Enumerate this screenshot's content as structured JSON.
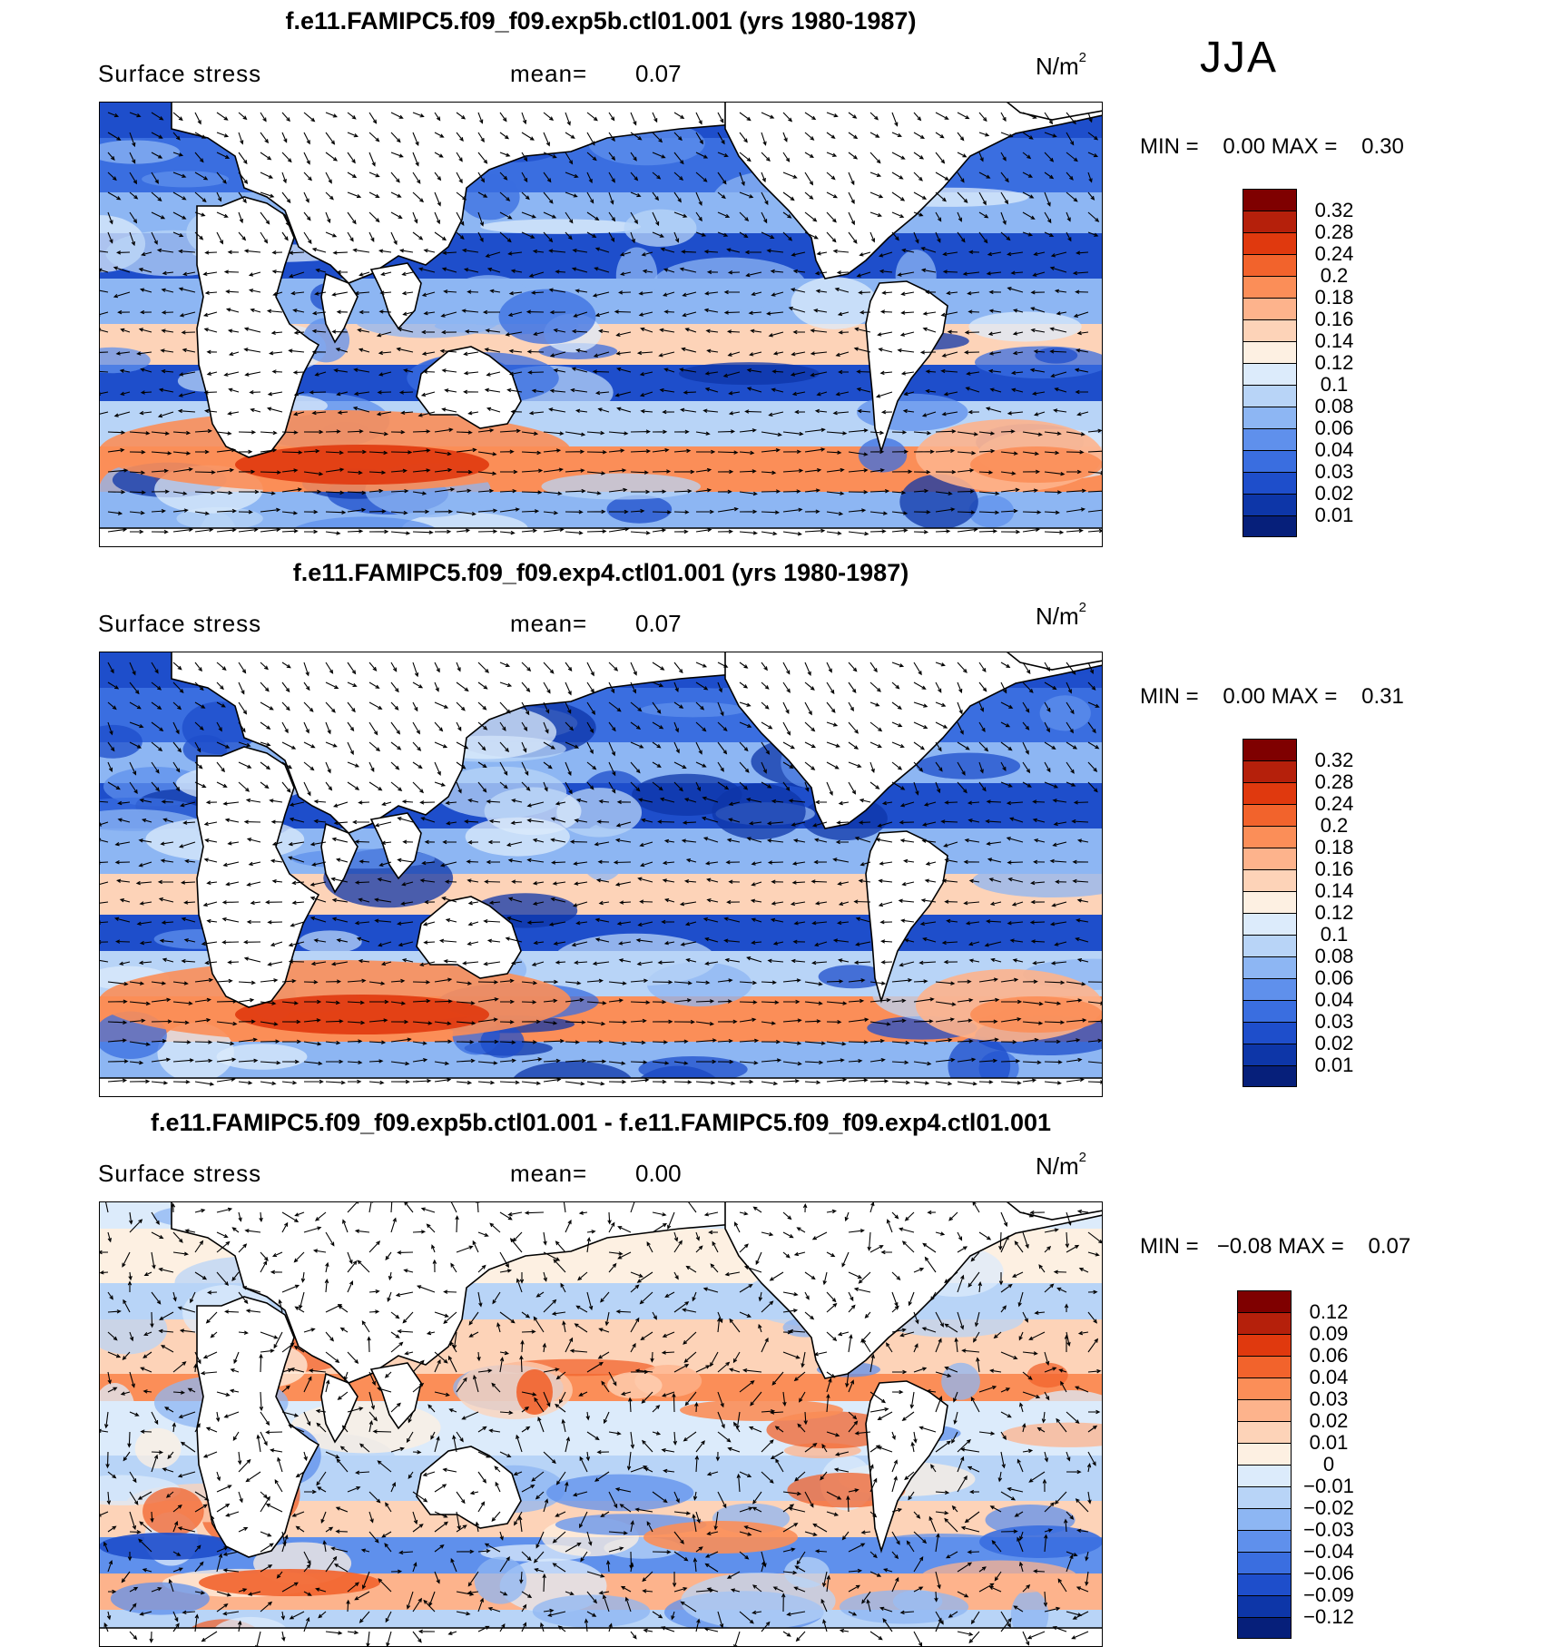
{
  "season": "JJA",
  "panels": [
    {
      "title": "f.e11.FAMIPC5.f09_f09.exp5b.ctl01.001 (yrs 1980-1987)",
      "variable": "Surface stress",
      "mean_label": "mean=",
      "mean_value": "0.07",
      "units_base": "N/m",
      "units_exp": "2",
      "min_label": "MIN =",
      "min_value": "0.00",
      "max_label": "MAX =",
      "max_value": "0.30",
      "colorbar": {
        "labels": [
          "0.32",
          "0.28",
          "0.24",
          "0.2",
          "0.18",
          "0.16",
          "0.14",
          "0.12",
          "0.1",
          "0.08",
          "0.06",
          "0.04",
          "0.03",
          "0.02",
          "0.01"
        ],
        "colors": [
          "#7f0000",
          "#b5200b",
          "#e0390e",
          "#f2632c",
          "#fb8e58",
          "#fdb38c",
          "#fdd3b8",
          "#fdf0e2",
          "#dcebfb",
          "#b8d4f7",
          "#8db6f3",
          "#5f90ec",
          "#3a6ee0",
          "#1e4ecb",
          "#0d36a8",
          "#061f7a"
        ]
      }
    },
    {
      "title": "f.e11.FAMIPC5.f09_f09.exp4.ctl01.001 (yrs 1980-1987)",
      "variable": "Surface stress",
      "mean_label": "mean=",
      "mean_value": "0.07",
      "units_base": "N/m",
      "units_exp": "2",
      "min_label": "MIN =",
      "min_value": "0.00",
      "max_label": "MAX =",
      "max_value": "0.31",
      "colorbar": {
        "labels": [
          "0.32",
          "0.28",
          "0.24",
          "0.2",
          "0.18",
          "0.16",
          "0.14",
          "0.12",
          "0.1",
          "0.08",
          "0.06",
          "0.04",
          "0.03",
          "0.02",
          "0.01"
        ],
        "colors": [
          "#7f0000",
          "#b5200b",
          "#e0390e",
          "#f2632c",
          "#fb8e58",
          "#fdb38c",
          "#fdd3b8",
          "#fdf0e2",
          "#dcebfb",
          "#b8d4f7",
          "#8db6f3",
          "#5f90ec",
          "#3a6ee0",
          "#1e4ecb",
          "#0d36a8",
          "#061f7a"
        ]
      }
    },
    {
      "title": "f.e11.FAMIPC5.f09_f09.exp5b.ctl01.001 - f.e11.FAMIPC5.f09_f09.exp4.ctl01.001",
      "variable": "Surface stress",
      "mean_label": "mean=",
      "mean_value": "0.00",
      "units_base": "N/m",
      "units_exp": "2",
      "min_label": "MIN =",
      "min_value": "−0.08",
      "max_label": "MAX =",
      "max_value": "0.07",
      "colorbar": {
        "labels": [
          "0.12",
          "0.09",
          "0.06",
          "0.04",
          "0.03",
          "0.02",
          "0.01",
          "0",
          "−0.01",
          "−0.02",
          "−0.03",
          "−0.04",
          "−0.06",
          "−0.09",
          "−0.12"
        ],
        "colors": [
          "#7f0000",
          "#b5200b",
          "#e0390e",
          "#f2632c",
          "#fb8e58",
          "#fdb38c",
          "#fdd3b8",
          "#fdf0e2",
          "#dcebfb",
          "#b8d4f7",
          "#8db6f3",
          "#5f90ec",
          "#3a6ee0",
          "#1e4ecb",
          "#0d36a8",
          "#061f7a"
        ]
      }
    }
  ]
}
